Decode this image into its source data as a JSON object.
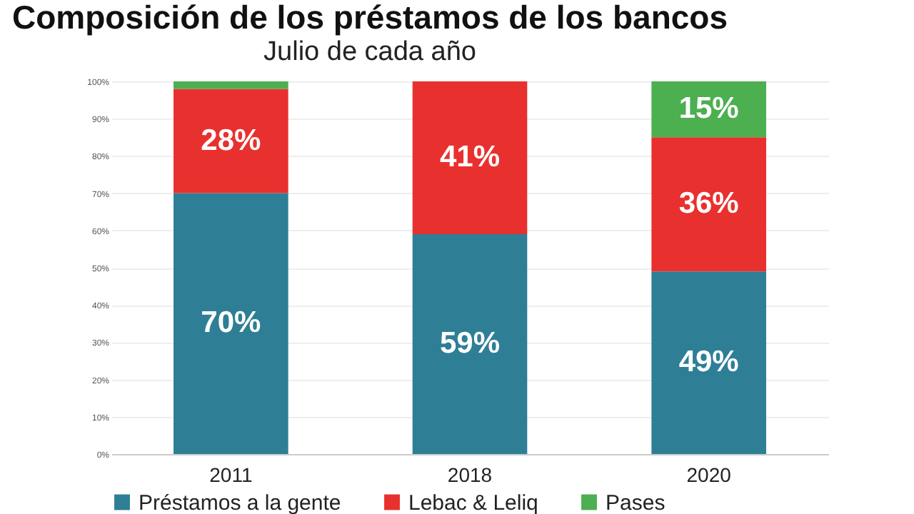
{
  "chart_data": {
    "type": "bar",
    "title": "Composición de los préstamos de los bancos",
    "subtitle": "Julio de cada año",
    "categories": [
      "2011",
      "2018",
      "2020"
    ],
    "stacked": true,
    "series": [
      {
        "name": "Préstamos a la gente",
        "color": "#2e7f96",
        "values": [
          70,
          59,
          49
        ],
        "value_labels": [
          "70%",
          "59%",
          "49%"
        ]
      },
      {
        "name": "Lebac & Leliq",
        "color": "#e8312f",
        "values": [
          28,
          41,
          36
        ],
        "value_labels": [
          "28%",
          "41%",
          "36%"
        ]
      },
      {
        "name": "Pases",
        "color": "#4caf50",
        "values": [
          2,
          0,
          15
        ],
        "value_labels": [
          null,
          null,
          "15%"
        ]
      }
    ],
    "ylim": [
      0,
      100
    ],
    "yticks": [
      {
        "value": 0,
        "label": "0%"
      },
      {
        "value": 10,
        "label": "10%"
      },
      {
        "value": 20,
        "label": "20%"
      },
      {
        "value": 30,
        "label": "30%"
      },
      {
        "value": 40,
        "label": "40%"
      },
      {
        "value": 50,
        "label": "50%"
      },
      {
        "value": 60,
        "label": "60%"
      },
      {
        "value": 70,
        "label": "70%"
      },
      {
        "value": 80,
        "label": "80%"
      },
      {
        "value": 90,
        "label": "90%"
      },
      {
        "value": 100,
        "label": "100%"
      }
    ],
    "grid": "y",
    "legend": "bottom"
  }
}
